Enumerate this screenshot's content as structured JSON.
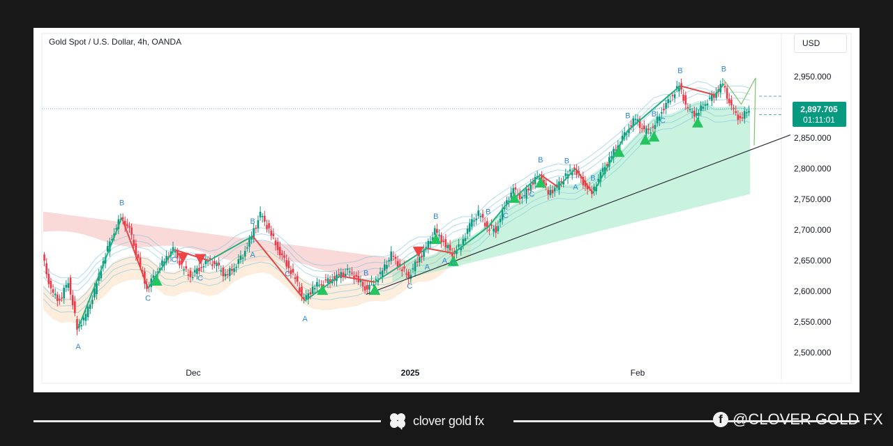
{
  "chart": {
    "title": "Gold Spot / U.S. Dollar, 4h, OANDA",
    "currency_label": "USD"
  },
  "chart_data": {
    "type": "line",
    "title": "Gold Spot / U.S. Dollar, 4h, OANDA",
    "ylabel": "USD",
    "ylim": [
      2470,
      2975
    ],
    "y_ticks": [
      "2,950.000",
      "2,900.000",
      "2,850.000",
      "2,800.000",
      "2,750.000",
      "2,700.000",
      "2,650.000",
      "2,600.000",
      "2,550.000",
      "2,500.000"
    ],
    "x_ticks": [
      "Dec",
      "2025",
      "Feb"
    ],
    "price_line": {
      "value": "2,897.705",
      "countdown": "01:11:01",
      "price": 2897.705
    },
    "series": [
      {
        "values": [
          2660,
          2600,
          2585,
          2618,
          2540,
          2560,
          2600,
          2650,
          2690,
          2720,
          2700,
          2650,
          2605,
          2630,
          2650,
          2668,
          2640,
          2625,
          2638,
          2650,
          2642,
          2625,
          2640,
          2660,
          2690,
          2725,
          2700,
          2670,
          2645,
          2620,
          2585,
          2605,
          2615,
          2618,
          2625,
          2632,
          2622,
          2605,
          2615,
          2632,
          2660,
          2640,
          2625,
          2650,
          2670,
          2698,
          2680,
          2662,
          2675,
          2708,
          2727,
          2705,
          2700,
          2740,
          2765,
          2750,
          2775,
          2790,
          2760,
          2770,
          2788,
          2800,
          2778,
          2760,
          2790,
          2815,
          2840,
          2862,
          2882,
          2860,
          2865,
          2895,
          2915,
          2935,
          2895,
          2888,
          2908,
          2920,
          2938,
          2898,
          2880,
          2897.705
        ]
      }
    ],
    "wave_labels": {
      "A": [
        "A",
        "A",
        "A",
        "A",
        "A",
        "A"
      ],
      "B": [
        "B",
        "B",
        "B",
        "B",
        "B",
        "B",
        "B",
        "B",
        "B",
        "B",
        "B",
        "B"
      ],
      "C": [
        "C",
        "C",
        "C",
        "C",
        "C",
        "C",
        "C",
        "C",
        "C"
      ]
    },
    "signals": {
      "buy_color": "#22c55e",
      "sell_color": "#ef4444"
    },
    "colors": {
      "up": "#089981",
      "down": "#f23645",
      "zigzag_up": "#22b07d",
      "zigzag_down": "#e54646",
      "label": "#2f86d8"
    }
  },
  "footer": {
    "brand": "clover gold fx",
    "social": "@CLOVER GOLD FX",
    "icons": [
      "clover-icon",
      "facebook-icon"
    ]
  }
}
